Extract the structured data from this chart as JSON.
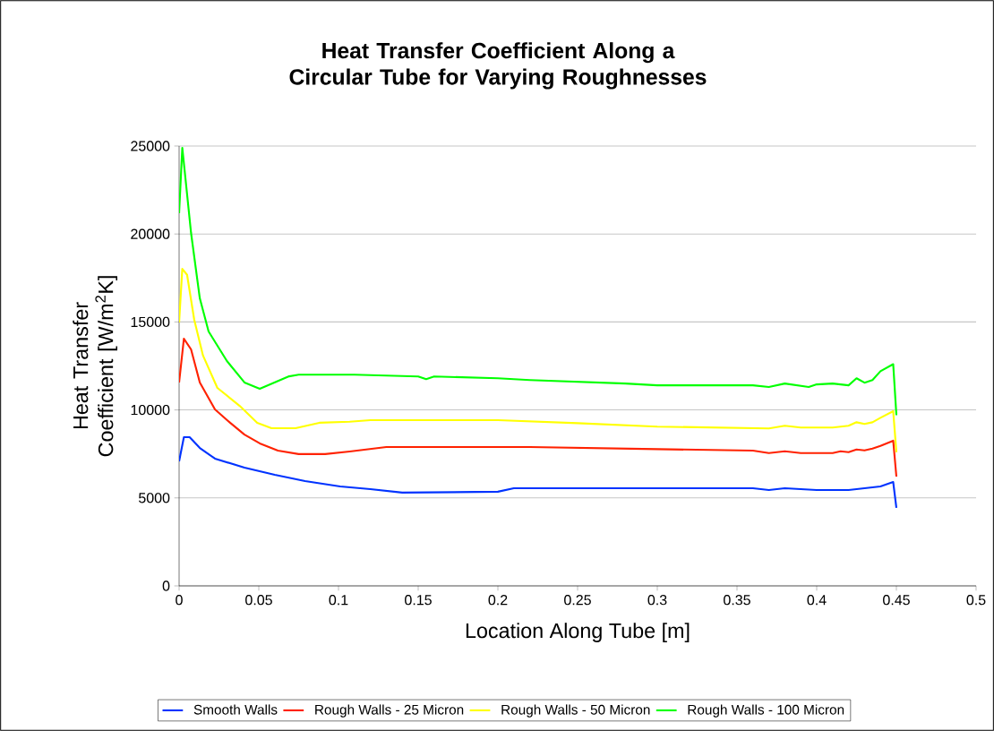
{
  "chart_data": {
    "type": "line",
    "title": "Heat Transfer Coefficient Along a Circular Tube for Varying Roughnesses",
    "xlabel": "Location Along Tube [m]",
    "ylabel": "Heat Transfer Coefficient [W/m$^{2}$K]",
    "xlim": [
      0,
      0.5
    ],
    "ylim": [
      0,
      25000
    ],
    "xticks": [
      0,
      0.05,
      0.1,
      0.15,
      0.2,
      0.25,
      0.3,
      0.35,
      0.4,
      0.45,
      0.5
    ],
    "yticks": [
      0,
      5000,
      10000,
      15000,
      20000,
      25000
    ],
    "grid": "y",
    "legend": "bottom",
    "marker": "none",
    "line_style": "solid",
    "series": [
      {
        "name": "Smooth Walls",
        "color": "#0033ff",
        "x": [
          0,
          0.003,
          0.0066,
          0.013,
          0.0225,
          0.041,
          0.06,
          0.079,
          0.101,
          0.12,
          0.14,
          0.2,
          0.21,
          0.3,
          0.36,
          0.37,
          0.38,
          0.4,
          0.42,
          0.43,
          0.44,
          0.448,
          0.45
        ],
        "values": [
          7080,
          8450,
          8450,
          7840,
          7230,
          6720,
          6310,
          5960,
          5650,
          5500,
          5300,
          5350,
          5550,
          5550,
          5550,
          5450,
          5550,
          5450,
          5450,
          5550,
          5650,
          5900,
          4430
        ]
      },
      {
        "name": "Rough Walls - 25 Micron",
        "color": "#ff2200",
        "x": [
          0,
          0.003,
          0.0075,
          0.013,
          0.0225,
          0.032,
          0.041,
          0.0506,
          0.062,
          0.075,
          0.0916,
          0.107,
          0.13,
          0.22,
          0.3,
          0.36,
          0.37,
          0.38,
          0.39,
          0.41,
          0.415,
          0.42,
          0.425,
          0.43,
          0.435,
          0.44,
          0.448,
          0.45
        ],
        "values": [
          11560,
          14050,
          13440,
          11560,
          10030,
          9270,
          8600,
          8100,
          7690,
          7490,
          7490,
          7640,
          7890,
          7890,
          7770,
          7690,
          7550,
          7650,
          7550,
          7550,
          7650,
          7600,
          7750,
          7700,
          7800,
          7950,
          8250,
          6210
        ]
      },
      {
        "name": "Rough Walls - 50 Micron",
        "color": "#ffff00",
        "x": [
          0,
          0.002,
          0.005,
          0.0095,
          0.015,
          0.024,
          0.038,
          0.049,
          0.058,
          0.073,
          0.088,
          0.107,
          0.12,
          0.2,
          0.25,
          0.3,
          0.37,
          0.38,
          0.39,
          0.41,
          0.42,
          0.425,
          0.43,
          0.435,
          0.44,
          0.448,
          0.45
        ],
        "values": [
          14970,
          18020,
          17680,
          15120,
          13090,
          11250,
          10230,
          9270,
          8960,
          8960,
          9270,
          9330,
          9420,
          9420,
          9250,
          9050,
          8950,
          9100,
          9000,
          9000,
          9100,
          9300,
          9200,
          9300,
          9550,
          9930,
          7590
        ]
      },
      {
        "name": "Rough Walls - 100 Micron",
        "color": "#00ff00",
        "x": [
          0,
          0.002,
          0.0075,
          0.013,
          0.0185,
          0.03,
          0.041,
          0.0506,
          0.069,
          0.075,
          0.11,
          0.15,
          0.155,
          0.16,
          0.2,
          0.22,
          0.25,
          0.28,
          0.3,
          0.36,
          0.37,
          0.38,
          0.395,
          0.4,
          0.41,
          0.42,
          0.425,
          0.43,
          0.435,
          0.44,
          0.448,
          0.45
        ],
        "values": [
          21180,
          24900,
          20060,
          16340,
          14460,
          12780,
          11560,
          11200,
          11910,
          12000,
          12000,
          11900,
          11750,
          11900,
          11800,
          11700,
          11600,
          11500,
          11400,
          11400,
          11300,
          11500,
          11300,
          11450,
          11500,
          11400,
          11800,
          11550,
          11700,
          12200,
          12600,
          9700
        ]
      }
    ]
  }
}
